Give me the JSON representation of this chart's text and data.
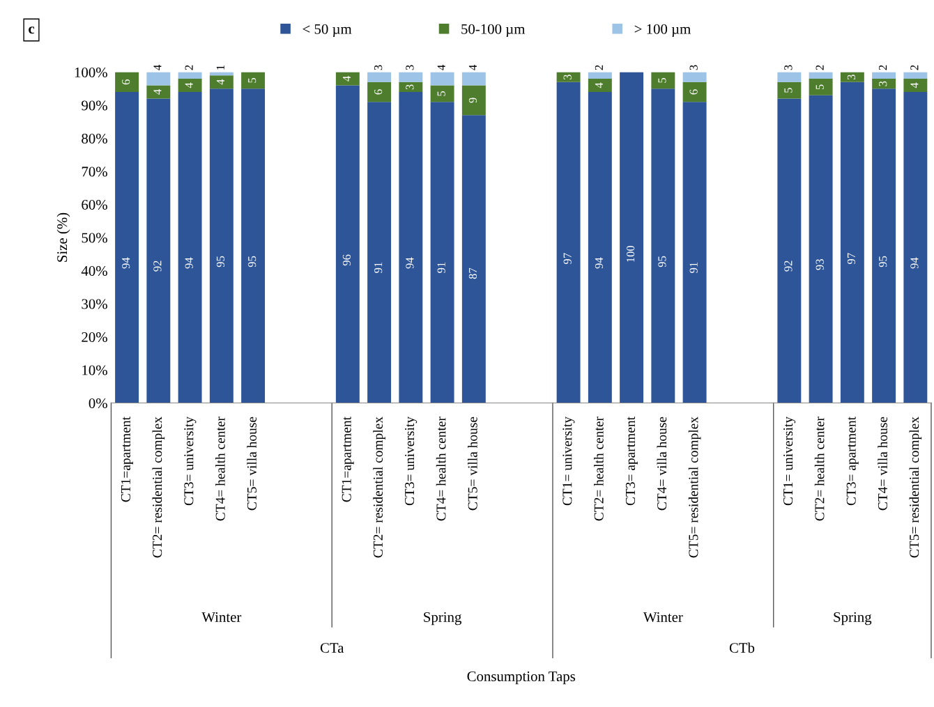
{
  "chart_data": {
    "type": "bar",
    "stacked": true,
    "ylabel": "Size (%)",
    "categories": [
      "CT1=apartment",
      "CT2= residential complex",
      "CT3= university",
      "CT4= health center",
      "CT5= villa house",
      null,
      null,
      "CT1=apartment",
      "CT2= residential complex",
      "CT3= university",
      "CT4= health center",
      "CT5= villa house",
      null,
      null,
      "CT1= university",
      "CT2= health center",
      "CT3= apartment",
      "CT4= villa house",
      "CT5= residential complex",
      null,
      null,
      "CT1= university",
      "CT2= health center",
      "CT3= apartment",
      "CT4= villa house",
      "CT5= residential complex"
    ],
    "series": [
      {
        "name": "< 50 µm",
        "color": "#2e5597",
        "values": [
          94,
          92,
          94,
          95,
          95,
          null,
          null,
          96,
          91,
          94,
          91,
          87,
          null,
          null,
          97,
          94,
          100,
          95,
          91,
          null,
          null,
          92,
          93,
          97,
          95,
          94
        ]
      },
      {
        "name": "50-100 µm",
        "color": "#4e7d2e",
        "values": [
          6,
          4,
          4,
          4,
          5,
          null,
          null,
          4,
          6,
          3,
          5,
          9,
          null,
          null,
          3,
          4,
          null,
          5,
          6,
          null,
          null,
          5,
          5,
          3,
          3,
          4
        ]
      },
      {
        "name": "> 100 µm",
        "color": "#9dc3e6",
        "values": [
          null,
          4,
          2,
          1,
          null,
          null,
          null,
          null,
          3,
          3,
          4,
          4,
          null,
          null,
          null,
          2,
          null,
          null,
          3,
          null,
          null,
          3,
          2,
          null,
          2,
          2
        ]
      }
    ],
    "ylim": [
      0,
      100
    ],
    "yticks": [
      {
        "value": 0,
        "label": "0%"
      },
      {
        "value": 10,
        "label": "10%"
      },
      {
        "value": 20,
        "label": "20%"
      },
      {
        "value": 30,
        "label": "30%"
      },
      {
        "value": 40,
        "label": "40%"
      },
      {
        "value": 50,
        "label": "50%"
      },
      {
        "value": 60,
        "label": "60%"
      },
      {
        "value": 70,
        "label": "70%"
      },
      {
        "value": 80,
        "label": "80%"
      },
      {
        "value": 90,
        "label": "90%"
      },
      {
        "value": 100,
        "label": "100%"
      }
    ],
    "data_labels": true,
    "legend": "top",
    "grid": false,
    "annotations": [
      "c",
      "Winter",
      "Spring",
      "Winter",
      "Spring",
      "CTa",
      "CTb",
      "Consumption Taps"
    ]
  }
}
